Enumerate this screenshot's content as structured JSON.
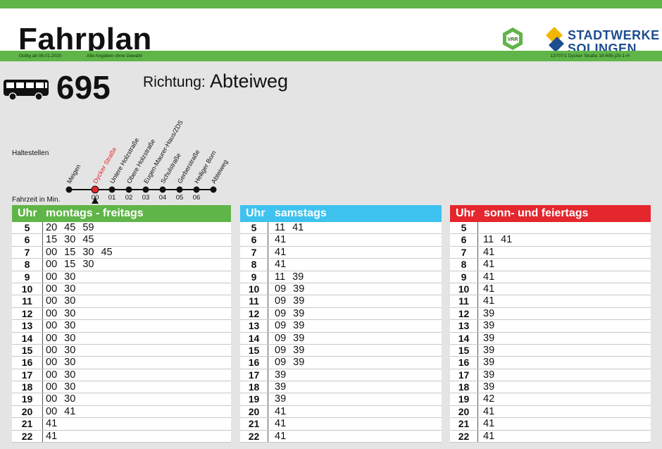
{
  "header": {
    "title": "Fahrplan",
    "vrr_logo": "VRR",
    "operator_line1": "STADTWERKE",
    "operator_line2": "SOLINGEN",
    "valid_from": "Gültig ab 06.01.2020",
    "disclaimer": "Alle Angaben ohne Gewähr",
    "reference": "13707/1 Dycker Straße 18-695-j20-1-H"
  },
  "route": {
    "icon": "bus-icon",
    "number": "695",
    "direction_label": "Richtung:",
    "direction": "Abteiweg"
  },
  "stops": {
    "label": "Haltestellen",
    "time_label": "Fahrzeit in Min.",
    "items": [
      {
        "name": "Meigen",
        "time": ""
      },
      {
        "name": "Dycker Straße",
        "time": "00",
        "current": true
      },
      {
        "name": "Untere Holzstraße",
        "time": "01"
      },
      {
        "name": "Obere Holzstraße",
        "time": "02"
      },
      {
        "name": "Eugen-Maurer-Haus/ZDS",
        "time": "03"
      },
      {
        "name": "Schulstraße",
        "time": "04"
      },
      {
        "name": "Gerberstraße",
        "time": "05"
      },
      {
        "name": "Heiliger Born",
        "time": "06"
      },
      {
        "name": "Abteiweg",
        "time": ""
      }
    ]
  },
  "colors": {
    "green": "#5fb548",
    "blue": "#3ec2ef",
    "red": "#e4262d",
    "current_stop": "#e4262d"
  },
  "timetables": [
    {
      "uhr": "Uhr",
      "title": "montags - freitags",
      "color": "#5fb548",
      "rows": [
        {
          "hour": "5",
          "minutes": "20 45 59"
        },
        {
          "hour": "6",
          "minutes": "15 30 45"
        },
        {
          "hour": "7",
          "minutes": "00 15 30 45"
        },
        {
          "hour": "8",
          "minutes": "00 15 30"
        },
        {
          "hour": "9",
          "minutes": "00 30"
        },
        {
          "hour": "10",
          "minutes": "00 30"
        },
        {
          "hour": "11",
          "minutes": "00 30"
        },
        {
          "hour": "12",
          "minutes": "00 30"
        },
        {
          "hour": "13",
          "minutes": "00 30"
        },
        {
          "hour": "14",
          "minutes": "00 30"
        },
        {
          "hour": "15",
          "minutes": "00 30"
        },
        {
          "hour": "16",
          "minutes": "00 30"
        },
        {
          "hour": "17",
          "minutes": "00 30"
        },
        {
          "hour": "18",
          "minutes": "00 30"
        },
        {
          "hour": "19",
          "minutes": "00 30"
        },
        {
          "hour": "20",
          "minutes": "00 41"
        },
        {
          "hour": "21",
          "minutes": "41"
        },
        {
          "hour": "22",
          "minutes": "41"
        }
      ]
    },
    {
      "uhr": "Uhr",
      "title": "samstags",
      "color": "#3ec2ef",
      "rows": [
        {
          "hour": "5",
          "minutes": "11 41"
        },
        {
          "hour": "6",
          "minutes": "41"
        },
        {
          "hour": "7",
          "minutes": "41"
        },
        {
          "hour": "8",
          "minutes": "41"
        },
        {
          "hour": "9",
          "minutes": "11 39"
        },
        {
          "hour": "10",
          "minutes": "09 39"
        },
        {
          "hour": "11",
          "minutes": "09 39"
        },
        {
          "hour": "12",
          "minutes": "09 39"
        },
        {
          "hour": "13",
          "minutes": "09 39"
        },
        {
          "hour": "14",
          "minutes": "09 39"
        },
        {
          "hour": "15",
          "minutes": "09 39"
        },
        {
          "hour": "16",
          "minutes": "09 39"
        },
        {
          "hour": "17",
          "minutes": "39"
        },
        {
          "hour": "18",
          "minutes": "39"
        },
        {
          "hour": "19",
          "minutes": "39"
        },
        {
          "hour": "20",
          "minutes": "41"
        },
        {
          "hour": "21",
          "minutes": "41"
        },
        {
          "hour": "22",
          "minutes": "41"
        }
      ]
    },
    {
      "uhr": "Uhr",
      "title": "sonn- und feiertags",
      "color": "#e4262d",
      "rows": [
        {
          "hour": "5",
          "minutes": ""
        },
        {
          "hour": "6",
          "minutes": "11 41"
        },
        {
          "hour": "7",
          "minutes": "41"
        },
        {
          "hour": "8",
          "minutes": "41"
        },
        {
          "hour": "9",
          "minutes": "41"
        },
        {
          "hour": "10",
          "minutes": "41"
        },
        {
          "hour": "11",
          "minutes": "41"
        },
        {
          "hour": "12",
          "minutes": "39"
        },
        {
          "hour": "13",
          "minutes": "39"
        },
        {
          "hour": "14",
          "minutes": "39"
        },
        {
          "hour": "15",
          "minutes": "39"
        },
        {
          "hour": "16",
          "minutes": "39"
        },
        {
          "hour": "17",
          "minutes": "39"
        },
        {
          "hour": "18",
          "minutes": "39"
        },
        {
          "hour": "19",
          "minutes": "42"
        },
        {
          "hour": "20",
          "minutes": "41"
        },
        {
          "hour": "21",
          "minutes": "41"
        },
        {
          "hour": "22",
          "minutes": "41"
        }
      ]
    }
  ]
}
